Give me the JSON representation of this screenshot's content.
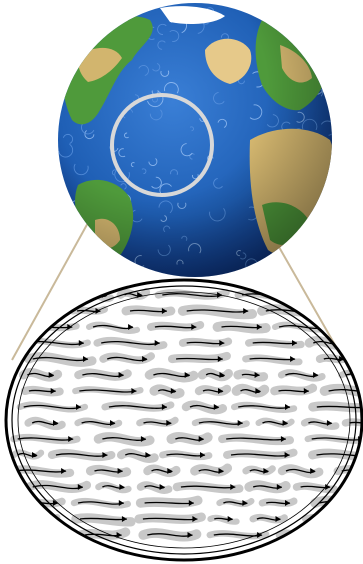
{
  "figure": {
    "globe": {
      "ocean_color": "#1f5fb5",
      "ocean_dark": "#0b2f7a",
      "land_green": "#4f9a3b",
      "land_tan": "#d2b56e",
      "ice_white": "#ffffff",
      "highlight_circle_color": "#d8d8d8"
    },
    "zoom": {
      "connector_color": "#c9b99a",
      "streamline_fill": "#c8c8c8",
      "streamline_stroke": "#000000",
      "background": "#ffffff"
    }
  }
}
